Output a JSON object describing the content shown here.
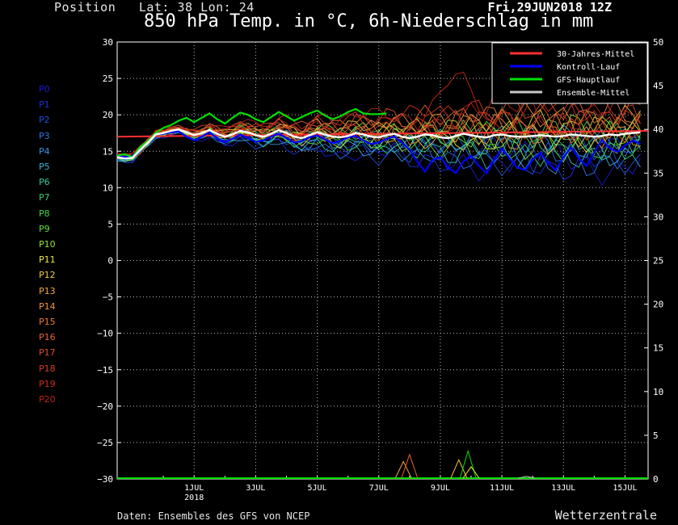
{
  "header": {
    "position": "Position   Lat: 38 Lon: 24",
    "datetime": "Fri,29JUN2018 12Z",
    "title": "850 hPa Temp. in °C, 6h-Niederschlag in mm"
  },
  "footer": {
    "source": "Daten: Ensembles des GFS von NCEP",
    "brand": "Wetterzentrale"
  },
  "members": [
    {
      "label": "P0",
      "color": "#1a1ad0"
    },
    {
      "label": "P1",
      "color": "#1c2fd8"
    },
    {
      "label": "P2",
      "color": "#1e50e0"
    },
    {
      "label": "P3",
      "color": "#2a78e6"
    },
    {
      "label": "P4",
      "color": "#3396e8"
    },
    {
      "label": "P5",
      "color": "#36b4d8"
    },
    {
      "label": "P6",
      "color": "#36c8a0"
    },
    {
      "label": "P7",
      "color": "#38d070"
    },
    {
      "label": "P8",
      "color": "#40d848"
    },
    {
      "label": "P9",
      "color": "#5ee03a"
    },
    {
      "label": "P10",
      "color": "#8ee434"
    },
    {
      "label": "P11",
      "color": "#e6e83a"
    },
    {
      "label": "P12",
      "color": "#f0c840"
    },
    {
      "label": "P13",
      "color": "#f0a840"
    },
    {
      "label": "P14",
      "color": "#f09040"
    },
    {
      "label": "P15",
      "color": "#ec7838"
    },
    {
      "label": "P16",
      "color": "#e66030"
    },
    {
      "label": "P17",
      "color": "#e04a28"
    },
    {
      "label": "P18",
      "color": "#d83a22"
    },
    {
      "label": "P19",
      "color": "#cc2e1c"
    },
    {
      "label": "P20",
      "color": "#b82418"
    }
  ],
  "chart_data": {
    "type": "line",
    "xlabel": "",
    "ylabel": "",
    "x_ticks": [
      "1JUL",
      "3JUL",
      "5JUL",
      "7JUL",
      "9JUL",
      "11JUL",
      "13JUL",
      "15JUL"
    ],
    "x_year_label": "2018",
    "xlim_days": [
      -1.5,
      15.75
    ],
    "y_left": {
      "min": -30,
      "max": 30,
      "ticks": [
        30,
        25,
        20,
        15,
        10,
        5,
        0,
        -5,
        -10,
        -15,
        -20,
        -25,
        -30
      ]
    },
    "y_right": {
      "min": 0,
      "max": 50,
      "ticks": [
        50,
        45,
        40,
        35,
        30,
        25,
        20,
        15,
        10,
        5,
        0
      ]
    },
    "grid": true,
    "legend_position": "top-right",
    "legend": [
      {
        "name": "30-Jahres-Mittel",
        "color": "#ff3030"
      },
      {
        "name": "Kontroll-Lauf",
        "color": "#0000ff"
      },
      {
        "name": "GFS-Hauptlauf",
        "color": "#00e000"
      },
      {
        "name": "Ensemble-Mittel",
        "color": "#c8c8c8"
      }
    ],
    "series_climatology": {
      "name": "30-Jahres-Mittel",
      "start": 17.0,
      "end": 17.8
    },
    "series_mean": {
      "name": "Ensemble-Mittel",
      "values": [
        14.2,
        14.0,
        14.1,
        15.2,
        16.2,
        17.3,
        17.5,
        17.8,
        18.0,
        17.6,
        17.2,
        17.5,
        17.9,
        17.4,
        17.0,
        17.3,
        17.8,
        17.6,
        17.2,
        17.0,
        17.4,
        17.9,
        17.5,
        17.0,
        16.8,
        17.2,
        17.6,
        17.3,
        17.0,
        16.9,
        17.1,
        17.5,
        17.3,
        17.0,
        16.9,
        17.2,
        17.4,
        17.0,
        16.8,
        17.0,
        17.3,
        17.2,
        16.9,
        16.8,
        17.1,
        17.4,
        17.2,
        17.0,
        16.9,
        17.2,
        17.3,
        17.1,
        17.0,
        17.0,
        17.1,
        17.2,
        17.1,
        17.0,
        17.1,
        17.3,
        17.2,
        17.1,
        17.0,
        17.1,
        17.3,
        17.2,
        17.4,
        17.5,
        17.6
      ]
    },
    "series_control": {
      "name": "Kontroll-Lauf",
      "values": [
        14.5,
        14.2,
        14.4,
        15.4,
        16.3,
        17.3,
        17.4,
        17.6,
        17.7,
        17.0,
        16.5,
        17.0,
        17.6,
        16.8,
        16.2,
        16.7,
        17.3,
        16.8,
        16.3,
        16.5,
        17.0,
        17.4,
        16.8,
        16.2,
        16.4,
        16.9,
        17.2,
        16.6,
        16.1,
        16.4,
        16.9,
        17.1,
        16.5,
        16.0,
        16.2,
        16.7,
        17.0,
        16.2,
        15.2,
        13.6,
        12.2,
        13.8,
        14.2,
        12.8,
        12.0,
        13.6,
        14.4,
        13.0,
        12.0,
        13.8,
        15.4,
        14.0,
        12.8,
        12.4,
        13.8,
        14.8,
        13.4,
        12.4,
        14.2,
        15.5,
        14.0,
        13.0,
        14.8,
        16.6,
        15.4,
        14.9,
        15.8,
        16.5,
        16.0
      ]
    },
    "series_gfs": {
      "name": "GFS-Hauptlauf",
      "values": [
        14.4,
        14.6,
        14.2,
        15.6,
        16.4,
        17.5,
        18.2,
        18.6,
        19.2,
        19.6,
        19.0,
        19.6,
        20.2,
        19.4,
        18.8,
        19.6,
        20.3,
        20.0,
        19.4,
        19.0,
        19.7,
        20.4,
        19.8,
        19.2,
        19.7,
        20.2,
        20.6,
        19.9,
        19.4,
        19.8,
        20.4,
        20.8,
        20.2,
        20.1,
        20.1,
        20.2
      ]
    },
    "precip_mm": [
      {
        "day": 7.8,
        "value": 2.0
      },
      {
        "day": 8.0,
        "value": 2.8
      },
      {
        "day": 9.6,
        "value": 2.2
      },
      {
        "day": 9.9,
        "value": 3.2
      },
      {
        "day": 10.0,
        "value": 1.4
      },
      {
        "day": 11.8,
        "value": 0.3
      }
    ]
  }
}
